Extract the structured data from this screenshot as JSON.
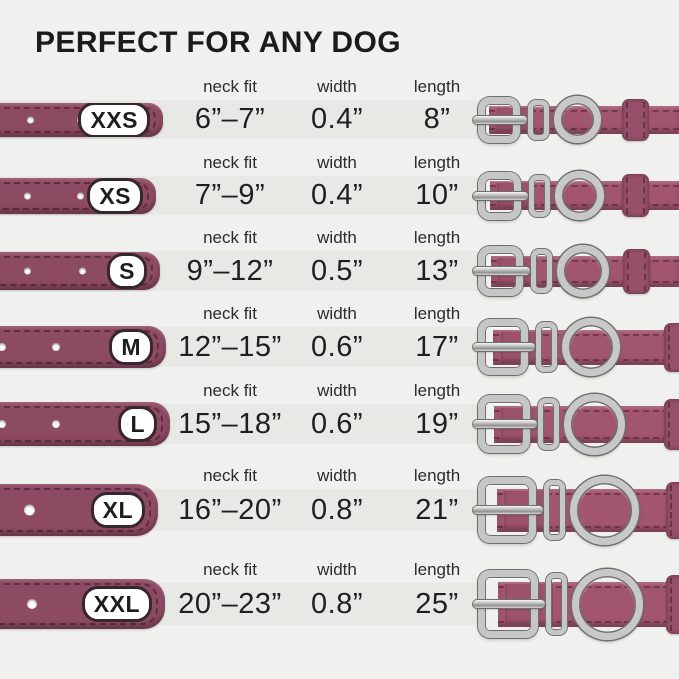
{
  "title": "PERFECT FOR ANY DOG",
  "columns": {
    "neck_fit": "neck fit",
    "width": "width",
    "length": "length"
  },
  "rows": [
    {
      "size": "XXS",
      "neck_fit": "6”–7”",
      "width": "0.4”",
      "length": "8”"
    },
    {
      "size": "XS",
      "neck_fit": "7”–9”",
      "width": "0.4”",
      "length": "10”"
    },
    {
      "size": "S",
      "neck_fit": "9”–12”",
      "width": "0.5”",
      "length": "13”"
    },
    {
      "size": "M",
      "neck_fit": "12”–15”",
      "width": "0.6”",
      "length": "17”"
    },
    {
      "size": "L",
      "neck_fit": "15”–18”",
      "width": "0.6”",
      "length": "19”"
    },
    {
      "size": "XL",
      "neck_fit": "16”–20”",
      "width": "0.8”",
      "length": "21”"
    },
    {
      "size": "XXL",
      "neck_fit": "20”–23”",
      "width": "0.8”",
      "length": "25”"
    }
  ],
  "chart_data": {
    "type": "table",
    "title": "PERFECT FOR ANY DOG",
    "columns": [
      "size",
      "neck fit",
      "width",
      "length"
    ],
    "rows": [
      [
        "XXS",
        "6”–7”",
        "0.4”",
        "8”"
      ],
      [
        "XS",
        "7”–9”",
        "0.4”",
        "10”"
      ],
      [
        "S",
        "9”–12”",
        "0.5”",
        "13”"
      ],
      [
        "M",
        "12”–15”",
        "0.6”",
        "17”"
      ],
      [
        "L",
        "15”–18”",
        "0.6”",
        "19”"
      ],
      [
        "XL",
        "16”–20”",
        "0.8”",
        "21”"
      ],
      [
        "XXL",
        "20”–23”",
        "0.8”",
        "25”"
      ]
    ]
  },
  "colors": {
    "background": "#f0f0ee",
    "row_band": "#e8e8e5",
    "strap_left": "#8d4a63",
    "strap_right": "#a2556e",
    "metal": "#c6c6c6",
    "badge_border": "#36262d",
    "text": "#1f1f1f"
  }
}
